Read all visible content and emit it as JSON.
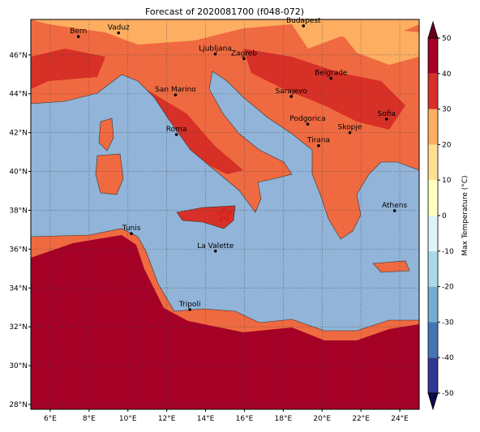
{
  "chart_data": {
    "type": "map",
    "title": "Forecast of 2020081700 (f048-072)",
    "xlim": [
      5,
      25
    ],
    "ylim": [
      27.75,
      47.83
    ],
    "xticks": [
      {
        "value": 6,
        "label": "6°E"
      },
      {
        "value": 8,
        "label": "8°E"
      },
      {
        "value": 10,
        "label": "10°E"
      },
      {
        "value": 12,
        "label": "12°E"
      },
      {
        "value": 14,
        "label": "14°E"
      },
      {
        "value": 16,
        "label": "16°E"
      },
      {
        "value": 18,
        "label": "18°E"
      },
      {
        "value": 20,
        "label": "20°E"
      },
      {
        "value": 22,
        "label": "22°E"
      },
      {
        "value": 24,
        "label": "24°E"
      }
    ],
    "yticks": [
      {
        "value": 28,
        "label": "28°N"
      },
      {
        "value": 30,
        "label": "30°N"
      },
      {
        "value": 32,
        "label": "32°N"
      },
      {
        "value": 34,
        "label": "34°N"
      },
      {
        "value": 36,
        "label": "36°N"
      },
      {
        "value": 38,
        "label": "38°N"
      },
      {
        "value": 40,
        "label": "40°N"
      },
      {
        "value": 42,
        "label": "42°N"
      },
      {
        "value": 44,
        "label": "44°N"
      },
      {
        "value": 46,
        "label": "46°N"
      }
    ],
    "grid": true,
    "cities": [
      {
        "name": "Bern",
        "lon": 7.45,
        "lat": 46.95
      },
      {
        "name": "Vaduz",
        "lon": 9.52,
        "lat": 47.14
      },
      {
        "name": "Budapest",
        "lon": 19.04,
        "lat": 47.5
      },
      {
        "name": "Ljubljana",
        "lon": 14.5,
        "lat": 46.05
      },
      {
        "name": "Zagreb",
        "lon": 15.98,
        "lat": 45.81
      },
      {
        "name": "Belgrade",
        "lon": 20.46,
        "lat": 44.8
      },
      {
        "name": "San Marino",
        "lon": 12.45,
        "lat": 43.94
      },
      {
        "name": "Sarajevo",
        "lon": 18.41,
        "lat": 43.86
      },
      {
        "name": "Sofia",
        "lon": 23.32,
        "lat": 42.7
      },
      {
        "name": "Podgorica",
        "lon": 19.26,
        "lat": 42.44
      },
      {
        "name": "Skopje",
        "lon": 21.43,
        "lat": 42.0
      },
      {
        "name": "Roma",
        "lon": 12.5,
        "lat": 41.9
      },
      {
        "name": "Tirana",
        "lon": 19.82,
        "lat": 41.33
      },
      {
        "name": "Athens",
        "lon": 23.73,
        "lat": 37.98
      },
      {
        "name": "Tunis",
        "lon": 10.18,
        "lat": 36.8
      },
      {
        "name": "La Valette",
        "lon": 14.51,
        "lat": 35.9
      },
      {
        "name": "Tripoli",
        "lon": 13.19,
        "lat": 32.89
      }
    ],
    "marker": {
      "lon": 14.96,
      "lat": 37.77,
      "color": "#d7191c"
    },
    "colorbar": {
      "label": "Max Temperature (°C)",
      "levels": [
        -50,
        -40,
        -30,
        -20,
        -10,
        0,
        10,
        20,
        30,
        40,
        50
      ],
      "colors": [
        "#313695",
        "#4575b4",
        "#74add1",
        "#abd9e9",
        "#e0f3f8",
        "#ffffbf",
        "#fee090",
        "#fdae61",
        "#d73027",
        "#a50026"
      ],
      "under": "#0b0b4a",
      "over": "#67001f",
      "ticks": [
        -50,
        -40,
        -30,
        -20,
        -10,
        0,
        10,
        20,
        30,
        40,
        50
      ]
    }
  }
}
